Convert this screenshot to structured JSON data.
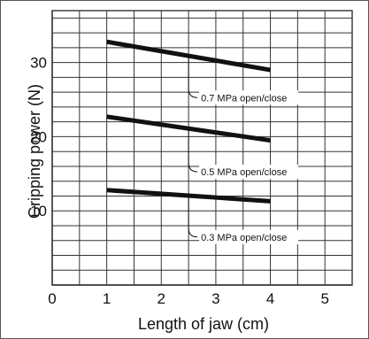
{
  "chart_data": {
    "type": "line",
    "xlabel": "Length of jaw (cm)",
    "ylabel": "Gripping power (N)",
    "xlim": [
      0,
      5.5
    ],
    "ylim": [
      0,
      37
    ],
    "x_ticks": [
      "0",
      "1",
      "2",
      "3",
      "4",
      "5"
    ],
    "y_ticks": [
      "10",
      "20",
      "30"
    ],
    "grid": true,
    "series": [
      {
        "name": "0.7 MPa open/close",
        "x": [
          1,
          4
        ],
        "y": [
          32.8,
          29.0
        ],
        "label_anchor": [
          2.5,
          31.0
        ]
      },
      {
        "name": "0.5 MPa open/close",
        "x": [
          1,
          4
        ],
        "y": [
          22.7,
          19.5
        ],
        "label_anchor": [
          2.5,
          21.0
        ]
      },
      {
        "name": "0.3 MPa open/close",
        "x": [
          1,
          4
        ],
        "y": [
          12.8,
          11.3
        ],
        "label_anchor": [
          2.5,
          12.2
        ]
      }
    ]
  },
  "colors": {
    "line": "#111111",
    "grid": "#333333",
    "frame": "#555555"
  }
}
